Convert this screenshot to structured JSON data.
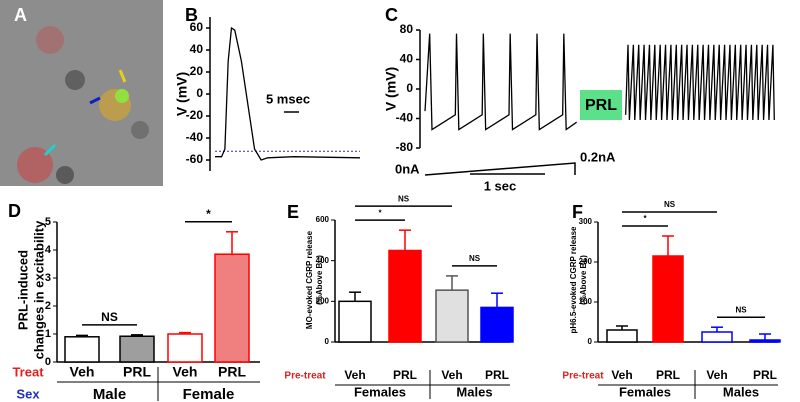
{
  "image_panel": {
    "label": "A"
  },
  "chart_data": [
    {
      "type": "line",
      "panel": "B",
      "ylabel": "V (mV)",
      "scale_label": "5 msec",
      "color": "#000000",
      "x": [
        0,
        1,
        1.5,
        2,
        2.5,
        3,
        4,
        5,
        6,
        7,
        8,
        12,
        22
      ],
      "values": [
        -57,
        -57,
        -50,
        30,
        60,
        58,
        30,
        -10,
        -50,
        -60,
        -58,
        -57,
        -58
      ],
      "xlim": [
        0,
        22
      ],
      "ylim": [
        -70,
        70
      ],
      "yticks": [
        60,
        40,
        20,
        0,
        -20,
        -40,
        -60
      ],
      "baseline": -52,
      "baseline_color": "#3333aa"
    },
    {
      "type": "line",
      "panel": "C",
      "ylabel": "V (mV)",
      "color": "#000000",
      "box_label": "PRL",
      "box_color": "#5de08a",
      "stimulus": {
        "start_label": "0nA",
        "end_label": "0.2nA",
        "duration_label": "1 sec"
      },
      "x": [
        0,
        20,
        30,
        80,
        130,
        135,
        145,
        195,
        245,
        250,
        260,
        310,
        360,
        365,
        375,
        425,
        475,
        480,
        490,
        540,
        590,
        595,
        605,
        650,
        700,
        860,
        870,
        876,
        893,
        899,
        916,
        922,
        939,
        945,
        962,
        968,
        985,
        991,
        1008,
        1014,
        1031,
        1037,
        1054,
        1060,
        1077,
        1083,
        1100,
        1106,
        1123,
        1129,
        1146,
        1152,
        1169,
        1175,
        1192,
        1198,
        1215,
        1221,
        1238,
        1244,
        1261,
        1267,
        1284,
        1290,
        1307,
        1313,
        1330,
        1336,
        1353,
        1359,
        1376,
        1382,
        1399,
        1405,
        1422,
        1428,
        1445,
        1451,
        1468,
        1474,
        1491,
        1497
      ],
      "values": [
        -30,
        75,
        -55,
        -45,
        -35,
        75,
        -55,
        -45,
        -35,
        75,
        -55,
        -45,
        -35,
        75,
        -55,
        -45,
        -35,
        75,
        -55,
        -45,
        -35,
        75,
        -55,
        -45,
        null,
        -35,
        60,
        -42,
        60,
        -42,
        60,
        -42,
        60,
        -42,
        60,
        -42,
        60,
        -42,
        60,
        -42,
        60,
        -42,
        60,
        -42,
        60,
        -42,
        60,
        -42,
        60,
        -42,
        60,
        -42,
        60,
        -42,
        60,
        -42,
        60,
        -42,
        60,
        -42,
        60,
        -42,
        60,
        -42,
        60,
        -42,
        60,
        -42,
        60,
        -42,
        60,
        -42,
        60,
        -42,
        60,
        -42,
        60,
        -42,
        60,
        -42,
        60,
        -42
      ],
      "xlim": [
        0,
        1500
      ],
      "ylim": [
        -80,
        80
      ],
      "yticks": [
        80,
        40,
        0,
        -40,
        -80
      ]
    },
    {
      "type": "bar",
      "panel": "D",
      "ylabel": [
        "PRL-induced",
        "changes in excitability"
      ],
      "categories": [
        "Veh",
        "PRL",
        "Veh",
        "PRL"
      ],
      "groups": [
        "Male",
        "Female"
      ],
      "row_labels": [
        "Treat",
        "Sex"
      ],
      "row_colors": [
        "#e02020",
        "#2030c0"
      ],
      "values": [
        0.9,
        0.92,
        1.0,
        3.85
      ],
      "errors": [
        0.05,
        0.05,
        0.05,
        0.8
      ],
      "colors": [
        "#ffffff",
        "#9e9e9e",
        "#ffffff",
        "#f08080"
      ],
      "edge_colors": [
        "#000000",
        "#000000",
        "#ff0000",
        "#ff0000"
      ],
      "ylim": [
        0,
        5
      ],
      "yticks": [
        0,
        1,
        2,
        3,
        4,
        5
      ],
      "annotations": [
        {
          "text": "NS",
          "from": 0,
          "to": 1
        },
        {
          "text": "*",
          "from": 2,
          "to": 3
        }
      ]
    },
    {
      "type": "bar",
      "panel": "E",
      "ylabel": [
        "MO-evoked CGRP release",
        "(%Above BL)"
      ],
      "categories": [
        "Veh",
        "PRL",
        "Veh",
        "PRL"
      ],
      "groups": [
        "Females",
        "Males"
      ],
      "row_labels": [
        "Pre-treat"
      ],
      "row_colors": [
        "#e02020"
      ],
      "values": [
        200,
        450,
        255,
        170
      ],
      "errors": [
        45,
        100,
        70,
        70
      ],
      "colors": [
        "#ffffff",
        "#ff0000",
        "#e0e0e0",
        "#0000ff"
      ],
      "edge_colors": [
        "#000000",
        "#ff0000",
        "#555555",
        "#0000ff"
      ],
      "ylim": [
        0,
        600
      ],
      "yticks": [
        0,
        200,
        400,
        600
      ],
      "annotations": [
        {
          "text": "*",
          "from": 0,
          "to": 1
        },
        {
          "text": "NS",
          "from": 2,
          "to": 3
        },
        {
          "text": "NS",
          "from": 0,
          "to": 2
        }
      ]
    },
    {
      "type": "bar",
      "panel": "F",
      "ylabel": [
        "pH6.5-evoked CGRP release",
        "(%Above BL)"
      ],
      "categories": [
        "Veh",
        "PRL",
        "Veh",
        "PRL"
      ],
      "groups": [
        "Females",
        "Males"
      ],
      "row_labels": [
        "Pre-treat"
      ],
      "row_colors": [
        "#e02020"
      ],
      "values": [
        30,
        215,
        25,
        5
      ],
      "errors": [
        10,
        50,
        12,
        15
      ],
      "colors": [
        "#ffffff",
        "#ff0000",
        "#ffffff",
        "#0000ff"
      ],
      "edge_colors": [
        "#000000",
        "#ff0000",
        "#0000ff",
        "#0000ff"
      ],
      "ylim": [
        0,
        300
      ],
      "yticks": [
        0,
        100,
        200,
        300
      ],
      "annotations": [
        {
          "text": "*",
          "from": 0,
          "to": 1
        },
        {
          "text": "NS",
          "from": 2,
          "to": 3
        },
        {
          "text": "NS",
          "from": 0,
          "to": 2
        }
      ]
    }
  ]
}
